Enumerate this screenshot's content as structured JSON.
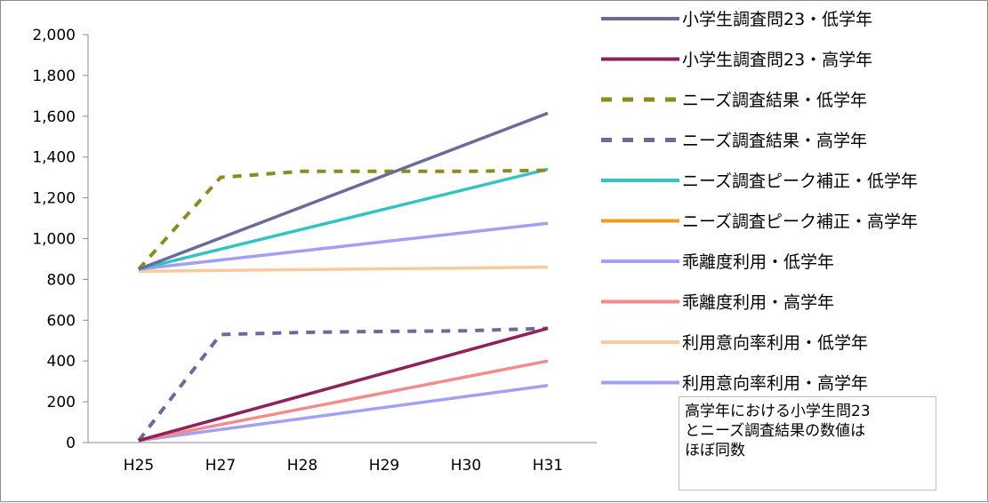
{
  "chart_data": {
    "type": "line",
    "categories": [
      "H25",
      "H27",
      "H28",
      "H29",
      "H30",
      "H31"
    ],
    "ylim": [
      0,
      2000
    ],
    "yticks": [
      "0",
      "200",
      "400",
      "600",
      "800",
      "1,000",
      "1,200",
      "1,400",
      "1,600",
      "1,800",
      "2,000"
    ],
    "ytick_values": [
      0,
      200,
      400,
      600,
      800,
      1000,
      1200,
      1400,
      1600,
      1800,
      2000
    ],
    "grid": false,
    "legend_position": "right",
    "series": [
      {
        "name": "小学生調査問23・低学年",
        "color": "#6b6b99",
        "dash": false,
        "values": [
          850,
          null,
          null,
          null,
          null,
          1615
        ]
      },
      {
        "name": "小学生調査問23・高学年",
        "color": "#8e2160",
        "dash": false,
        "values": [
          10,
          null,
          null,
          null,
          null,
          560
        ]
      },
      {
        "name": "ニーズ調査結果・低学年",
        "color": "#8b8b1f",
        "dash": true,
        "values": [
          850,
          1300,
          1330,
          1330,
          1330,
          1335
        ]
      },
      {
        "name": "ニーズ調査結果・高学年",
        "color": "#6b6b99",
        "dash": true,
        "values": [
          10,
          530,
          540,
          545,
          548,
          560
        ]
      },
      {
        "name": "ニーズ調査ピーク補正・低学年",
        "color": "#33c3c0",
        "dash": false,
        "values": [
          850,
          null,
          null,
          null,
          null,
          1340
        ]
      },
      {
        "name": "ニーズ調査ピーク補正・高学年",
        "color": "#f59a1c",
        "dash": false,
        "values": [
          10,
          null,
          null,
          null,
          null,
          560
        ]
      },
      {
        "name": "乖離度利用・低学年",
        "color": "#a0a0f5",
        "dash": false,
        "values": [
          850,
          null,
          null,
          null,
          null,
          1075
        ]
      },
      {
        "name": "乖離度利用・高学年",
        "color": "#f58a8a",
        "dash": false,
        "values": [
          10,
          null,
          null,
          null,
          null,
          400
        ]
      },
      {
        "name": "利用意向率利用・低学年",
        "color": "#fbc99c",
        "dash": false,
        "values": [
          840,
          null,
          null,
          null,
          null,
          860
        ]
      },
      {
        "name": "利用意向率利用・高学年",
        "color": "#a0a0f5",
        "dash": false,
        "values": [
          10,
          null,
          null,
          null,
          null,
          280
        ]
      }
    ],
    "annotation": "高学年における小学生問23\nとニーズ調査結果の数値は\nほぼ同数"
  }
}
